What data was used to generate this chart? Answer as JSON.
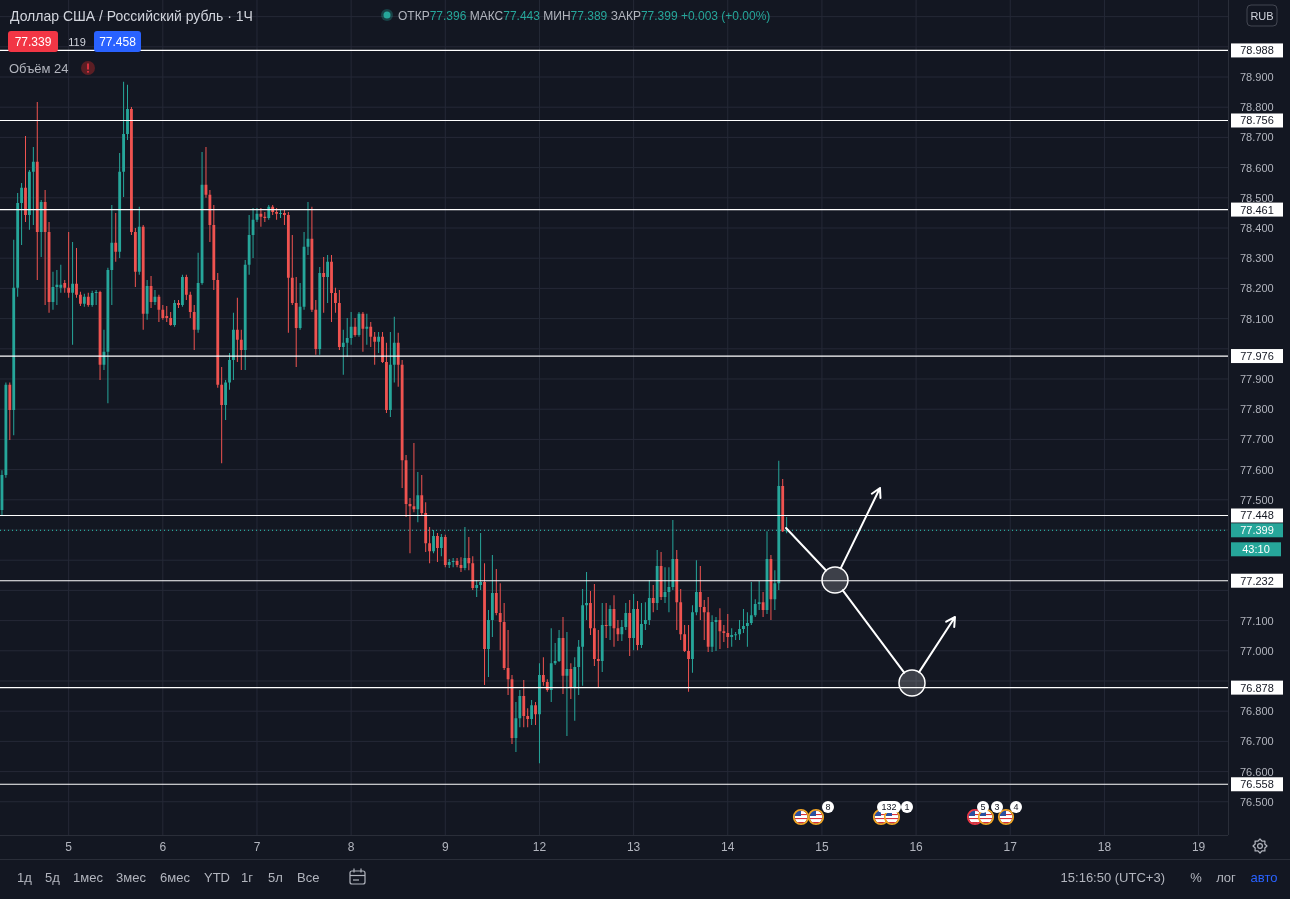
{
  "chart_data": {
    "type": "candlestick",
    "title": "Доллар США / Российский рубль · 1Ч",
    "subtitle": "ОТКР77.396 МАКС77.443 МИН77.389 ЗАКР77.399 +0.003 (+0.00%)",
    "categories": [
      null,
      null,
      null,
      null,
      null,
      null,
      null,
      null,
      null,
      null,
      null,
      null,
      null,
      null,
      null,
      null,
      null,
      "5",
      null,
      null,
      null,
      null,
      null,
      null,
      null,
      null,
      null,
      null,
      null,
      null,
      null,
      null,
      null,
      null,
      null,
      null,
      null,
      null,
      null,
      null,
      null,
      "6",
      null,
      null,
      null,
      null,
      null,
      null,
      null,
      null,
      null,
      null,
      null,
      null,
      null,
      null,
      null,
      null,
      null,
      null,
      null,
      null,
      null,
      null,
      null,
      "7",
      null,
      null,
      null,
      null,
      null,
      null,
      null,
      null,
      null,
      null,
      null,
      null,
      null,
      null,
      null,
      null,
      null,
      null,
      null,
      null,
      null,
      null,
      null,
      "8",
      null,
      null,
      null,
      null,
      null,
      null,
      null,
      null,
      null,
      null,
      null,
      null,
      null,
      null,
      null,
      null,
      null,
      null,
      null,
      null,
      null,
      null,
      null,
      "9",
      null,
      null,
      null,
      null,
      null,
      null,
      null,
      null,
      null,
      null,
      null,
      null,
      null,
      null,
      null,
      null,
      null,
      null,
      null,
      null,
      null,
      null,
      null,
      "12",
      null,
      null,
      null,
      null,
      null,
      null,
      null,
      null,
      null,
      null,
      null,
      null,
      null,
      null,
      null,
      null,
      null,
      null,
      null,
      null,
      null,
      null,
      null,
      "13",
      null,
      null,
      null,
      null,
      null,
      null,
      null,
      null,
      null,
      null,
      null,
      null,
      null,
      null,
      null,
      null,
      null,
      null,
      null,
      null,
      null,
      null,
      null,
      "14",
      null,
      null,
      null,
      null,
      null,
      null,
      null,
      null,
      null,
      null,
      null,
      null,
      null,
      null,
      null,
      null,
      null,
      null,
      null,
      null,
      null,
      null,
      null,
      "15",
      null,
      null,
      null,
      null,
      null,
      null,
      null,
      null,
      null,
      null,
      null,
      null,
      null,
      null,
      null,
      null,
      null,
      null,
      null,
      null,
      null,
      null,
      null,
      "16",
      null,
      null,
      null,
      null,
      null,
      null,
      null,
      null,
      null,
      null,
      null,
      null,
      null,
      null,
      null,
      null,
      null,
      null,
      null,
      null,
      null,
      null,
      null,
      "17",
      null,
      null,
      null,
      null,
      null,
      null,
      null,
      null,
      null,
      null,
      null,
      null,
      null,
      null,
      null,
      null,
      null,
      null,
      null,
      null,
      null,
      null,
      null,
      "18",
      null,
      null,
      null,
      null,
      null,
      null,
      null,
      null,
      null,
      null,
      null,
      null,
      null,
      null,
      null,
      null,
      null,
      null,
      null,
      null,
      null,
      null,
      null,
      "19",
      null,
      null,
      null,
      null,
      null,
      null,
      null
    ],
    "ohlc": [
      [
        77.466,
        77.598,
        77.449,
        77.582
      ],
      [
        77.582,
        77.888,
        77.573,
        77.881
      ],
      [
        77.881,
        77.888,
        77.698,
        77.797
      ],
      [
        77.797,
        78.361,
        77.714,
        78.202
      ],
      [
        78.202,
        78.516,
        78.172,
        78.483
      ],
      [
        78.483,
        78.549,
        78.344,
        78.533
      ],
      [
        78.533,
        78.705,
        78.42,
        78.443
      ],
      [
        78.443,
        78.592,
        78.394,
        78.586
      ],
      [
        78.586,
        78.668,
        78.41,
        78.619
      ],
      [
        78.619,
        78.817,
        78.228,
        78.387
      ],
      [
        78.387,
        78.493,
        78.304,
        78.486
      ],
      [
        78.486,
        78.526,
        78.145,
        78.387
      ],
      [
        78.387,
        78.42,
        78.119,
        78.155
      ],
      [
        78.155,
        78.255,
        78.129,
        78.205
      ],
      [
        78.205,
        78.261,
        78.145,
        78.212
      ],
      [
        78.202,
        78.278,
        78.186,
        78.212
      ],
      [
        78.218,
        78.228,
        78.186,
        78.202
      ],
      [
        78.202,
        78.387,
        78.169,
        78.186
      ],
      [
        78.186,
        78.354,
        78.013,
        78.215
      ],
      [
        78.215,
        78.334,
        78.169,
        78.179
      ],
      [
        78.179,
        78.189,
        78.142,
        78.149
      ],
      [
        78.149,
        78.182,
        78.139,
        78.172
      ],
      [
        78.172,
        78.186,
        78.139,
        78.145
      ],
      [
        78.145,
        78.192,
        78.139,
        78.185
      ],
      [
        78.185,
        78.195,
        78.145,
        78.188
      ],
      [
        78.188,
        78.192,
        77.897,
        77.947
      ],
      [
        77.947,
        78.063,
        77.93,
        77.99
      ],
      [
        77.99,
        78.268,
        77.82,
        78.261
      ],
      [
        78.261,
        78.476,
        78.145,
        78.351
      ],
      [
        78.351,
        78.45,
        78.288,
        78.321
      ],
      [
        78.321,
        78.648,
        78.301,
        78.586
      ],
      [
        78.586,
        78.884,
        78.503,
        78.711
      ],
      [
        78.711,
        78.874,
        78.691,
        78.794
      ],
      [
        78.794,
        78.801,
        78.377,
        78.387
      ],
      [
        78.387,
        78.4,
        78.205,
        78.255
      ],
      [
        78.255,
        78.47,
        78.245,
        78.404
      ],
      [
        78.404,
        78.41,
        78.063,
        78.116
      ],
      [
        78.116,
        78.228,
        78.096,
        78.208
      ],
      [
        78.208,
        78.241,
        78.135,
        78.155
      ],
      [
        78.155,
        78.195,
        78.145,
        78.172
      ],
      [
        78.172,
        78.179,
        78.089,
        78.129
      ],
      [
        78.129,
        78.145,
        78.096,
        78.102
      ],
      [
        78.109,
        78.142,
        78.089,
        78.102
      ],
      [
        78.102,
        78.122,
        78.076,
        78.079
      ],
      [
        78.079,
        78.162,
        78.073,
        78.152
      ],
      [
        78.152,
        78.162,
        78.135,
        78.145
      ],
      [
        78.145,
        78.245,
        78.139,
        78.238
      ],
      [
        78.238,
        78.245,
        78.162,
        78.179
      ],
      [
        78.179,
        78.189,
        78.102,
        78.122
      ],
      [
        78.122,
        78.145,
        77.996,
        78.063
      ],
      [
        78.063,
        78.318,
        78.053,
        78.218
      ],
      [
        78.218,
        78.652,
        78.212,
        78.543
      ],
      [
        78.543,
        78.668,
        78.5,
        78.51
      ],
      [
        78.51,
        78.526,
        78.354,
        78.41
      ],
      [
        78.41,
        78.476,
        78.195,
        78.228
      ],
      [
        78.228,
        78.251,
        77.871,
        77.881
      ],
      [
        77.881,
        77.94,
        77.621,
        77.814
      ],
      [
        77.814,
        77.897,
        77.764,
        77.888
      ],
      [
        77.888,
        77.986,
        77.864,
        77.963
      ],
      [
        77.963,
        78.119,
        77.897,
        78.063
      ],
      [
        78.063,
        78.169,
        77.956,
        78.03
      ],
      [
        78.03,
        78.063,
        77.93,
        77.996
      ],
      [
        77.996,
        78.294,
        77.93,
        78.278
      ],
      [
        78.278,
        78.443,
        78.245,
        78.377
      ],
      [
        78.377,
        78.466,
        78.301,
        78.427
      ],
      [
        78.427,
        78.466,
        78.42,
        78.447
      ],
      [
        78.447,
        78.466,
        78.404,
        78.437
      ],
      [
        78.437,
        78.453,
        78.42,
        78.433
      ],
      [
        78.433,
        78.476,
        78.427,
        78.47
      ],
      [
        78.47,
        78.476,
        78.443,
        78.453
      ],
      [
        78.453,
        78.466,
        78.427,
        78.447
      ],
      [
        78.447,
        78.46,
        78.433,
        78.45
      ],
      [
        78.45,
        78.46,
        78.41,
        78.443
      ],
      [
        78.443,
        78.453,
        78.053,
        78.235
      ],
      [
        78.235,
        78.377,
        78.145,
        78.152
      ],
      [
        78.152,
        78.238,
        77.94,
        78.069
      ],
      [
        78.069,
        78.218,
        78.063,
        78.139
      ],
      [
        78.139,
        78.387,
        78.129,
        78.338
      ],
      [
        78.338,
        78.486,
        78.311,
        78.364
      ],
      [
        78.364,
        78.47,
        78.122,
        78.129
      ],
      [
        78.129,
        78.162,
        77.98,
        77.999
      ],
      [
        77.999,
        78.271,
        77.98,
        78.251
      ],
      [
        78.251,
        78.304,
        78.119,
        78.238
      ],
      [
        78.238,
        78.311,
        78.152,
        78.288
      ],
      [
        78.288,
        78.311,
        78.089,
        78.185
      ],
      [
        78.185,
        78.202,
        78.119,
        78.152
      ],
      [
        78.152,
        78.195,
        77.996,
        78.006
      ],
      [
        78.006,
        78.063,
        77.914,
        78.02
      ],
      [
        78.02,
        78.102,
        77.973,
        78.036
      ],
      [
        78.036,
        78.122,
        78.013,
        78.073
      ],
      [
        78.073,
        78.102,
        78.04,
        78.046
      ],
      [
        78.046,
        78.122,
        78.04,
        78.116
      ],
      [
        78.116,
        78.122,
        77.99,
        78.066
      ],
      [
        78.066,
        78.116,
        78.013,
        78.073
      ],
      [
        78.073,
        78.089,
        78.006,
        78.04
      ],
      [
        78.04,
        78.056,
        77.947,
        78.023
      ],
      [
        78.023,
        78.056,
        77.986,
        78.04
      ],
      [
        78.04,
        78.056,
        77.953,
        77.956
      ],
      [
        77.956,
        78.02,
        77.787,
        77.797
      ],
      [
        77.797,
        78.056,
        77.774,
        77.947
      ],
      [
        77.947,
        78.106,
        77.888,
        78.02
      ],
      [
        78.02,
        78.053,
        77.874,
        77.947
      ],
      [
        77.947,
        77.963,
        77.539,
        77.631
      ],
      [
        77.631,
        77.648,
        77.443,
        77.486
      ],
      [
        77.486,
        77.506,
        77.323,
        77.479
      ],
      [
        77.479,
        77.688,
        77.459,
        77.469
      ],
      [
        77.469,
        77.592,
        77.426,
        77.515
      ],
      [
        77.515,
        77.582,
        77.449,
        77.456
      ],
      [
        77.456,
        77.492,
        77.327,
        77.356
      ],
      [
        77.356,
        77.41,
        77.29,
        77.33
      ],
      [
        77.33,
        77.4,
        77.323,
        77.38
      ],
      [
        77.38,
        77.39,
        77.294,
        77.34
      ],
      [
        77.34,
        77.387,
        77.313,
        77.377
      ],
      [
        77.377,
        77.384,
        77.277,
        77.284
      ],
      [
        77.284,
        77.304,
        77.274,
        77.294
      ],
      [
        77.294,
        77.307,
        77.277,
        77.297
      ],
      [
        77.297,
        77.307,
        77.277,
        77.284
      ],
      [
        77.284,
        77.31,
        77.261,
        77.274
      ],
      [
        77.274,
        77.41,
        77.267,
        77.307
      ],
      [
        77.307,
        77.377,
        77.267,
        77.29
      ],
      [
        77.29,
        77.313,
        77.201,
        77.208
      ],
      [
        77.208,
        77.234,
        77.178,
        77.218
      ],
      [
        77.218,
        77.39,
        77.201,
        77.228
      ],
      [
        77.228,
        77.29,
        76.887,
        77.006
      ],
      [
        77.006,
        77.135,
        76.913,
        77.102
      ],
      [
        77.102,
        77.317,
        77.046,
        77.191
      ],
      [
        77.191,
        77.271,
        77.118,
        77.125
      ],
      [
        77.125,
        77.224,
        77.002,
        77.095
      ],
      [
        77.095,
        77.158,
        76.936,
        76.943
      ],
      [
        76.943,
        77.069,
        76.854,
        76.906
      ],
      [
        76.906,
        76.92,
        76.691,
        76.711
      ],
      [
        76.711,
        76.83,
        76.665,
        76.777
      ],
      [
        76.777,
        76.87,
        76.747,
        76.85
      ],
      [
        76.85,
        76.903,
        76.747,
        76.784
      ],
      [
        76.784,
        76.81,
        76.747,
        76.774
      ],
      [
        76.774,
        76.837,
        76.754,
        76.82
      ],
      [
        76.82,
        76.83,
        76.754,
        76.79
      ],
      [
        76.79,
        76.959,
        76.628,
        76.92
      ],
      [
        76.92,
        76.979,
        76.884,
        76.897
      ],
      [
        76.897,
        76.906,
        76.864,
        76.87
      ],
      [
        76.87,
        77.075,
        76.83,
        76.959
      ],
      [
        76.959,
        77.026,
        76.953,
        76.966
      ],
      [
        76.966,
        77.069,
        76.963,
        77.042
      ],
      [
        77.042,
        77.112,
        76.857,
        76.917
      ],
      [
        76.917,
        77.062,
        76.718,
        76.94
      ],
      [
        76.94,
        76.959,
        76.84,
        76.877
      ],
      [
        76.877,
        76.979,
        76.768,
        76.946
      ],
      [
        76.946,
        77.036,
        76.854,
        77.013
      ],
      [
        77.013,
        77.205,
        76.884,
        77.151
      ],
      [
        77.151,
        77.261,
        77.102,
        77.158
      ],
      [
        77.158,
        77.198,
        77.052,
        77.075
      ],
      [
        77.075,
        77.221,
        76.95,
        76.973
      ],
      [
        76.973,
        77.069,
        76.88,
        76.966
      ],
      [
        76.966,
        77.158,
        76.93,
        77.085
      ],
      [
        77.085,
        77.158,
        77.042,
        77.082
      ],
      [
        77.082,
        77.151,
        77.036,
        77.138
      ],
      [
        77.138,
        77.184,
        77.013,
        77.075
      ],
      [
        77.075,
        77.102,
        77.032,
        77.055
      ],
      [
        77.055,
        77.102,
        77.032,
        77.079
      ],
      [
        77.079,
        77.158,
        77.069,
        77.125
      ],
      [
        77.125,
        77.168,
        76.983,
        77.042
      ],
      [
        77.042,
        77.188,
        77.002,
        77.138
      ],
      [
        77.138,
        77.165,
        77.002,
        77.019
      ],
      [
        77.019,
        77.158,
        77.009,
        77.089
      ],
      [
        77.089,
        77.161,
        77.069,
        77.102
      ],
      [
        77.102,
        77.234,
        77.085,
        77.175
      ],
      [
        77.175,
        77.218,
        77.128,
        77.158
      ],
      [
        77.158,
        77.334,
        77.135,
        77.281
      ],
      [
        77.281,
        77.327,
        77.168,
        77.178
      ],
      [
        77.178,
        77.277,
        77.158,
        77.195
      ],
      [
        77.195,
        77.277,
        77.128,
        77.211
      ],
      [
        77.211,
        77.433,
        77.201,
        77.304
      ],
      [
        77.304,
        77.334,
        77.069,
        77.161
      ],
      [
        77.161,
        77.205,
        77.036,
        77.055
      ],
      [
        77.055,
        77.085,
        76.996,
        76.999
      ],
      [
        76.999,
        77.085,
        76.864,
        76.973
      ],
      [
        76.973,
        77.151,
        76.927,
        77.128
      ],
      [
        77.128,
        77.3,
        77.118,
        77.195
      ],
      [
        77.195,
        77.281,
        77.102,
        77.145
      ],
      [
        77.145,
        77.168,
        77.036,
        77.128
      ],
      [
        77.128,
        77.178,
        76.996,
        77.013
      ],
      [
        77.013,
        77.118,
        76.996,
        77.095
      ],
      [
        77.095,
        77.112,
        76.999,
        77.102
      ],
      [
        77.102,
        77.141,
        77.006,
        77.065
      ],
      [
        77.065,
        77.085,
        77.029,
        77.059
      ],
      [
        77.059,
        77.122,
        77.009,
        77.046
      ],
      [
        77.046,
        77.075,
        77.013,
        77.052
      ],
      [
        77.052,
        77.062,
        77.036,
        77.055
      ],
      [
        77.055,
        77.102,
        77.036,
        77.072
      ],
      [
        77.072,
        77.138,
        77.059,
        77.082
      ],
      [
        77.082,
        77.128,
        77.013,
        77.092
      ],
      [
        77.092,
        77.228,
        77.085,
        77.118
      ],
      [
        77.118,
        77.171,
        77.112,
        77.155
      ],
      [
        77.155,
        77.231,
        77.135,
        77.161
      ],
      [
        77.161,
        77.195,
        77.112,
        77.135
      ],
      [
        77.135,
        77.396,
        77.122,
        77.304
      ],
      [
        77.304,
        77.317,
        77.102,
        77.171
      ],
      [
        77.171,
        77.267,
        77.135,
        77.224
      ],
      [
        77.224,
        77.629,
        77.201,
        77.546
      ],
      [
        77.546,
        77.569,
        77.393,
        77.396
      ],
      [
        77.396,
        77.443,
        77.389,
        77.399
      ],
      null,
      null,
      null,
      null,
      null,
      null,
      null,
      null,
      null,
      null,
      null,
      null,
      null,
      null,
      null,
      null,
      null,
      null,
      null,
      null,
      null,
      null,
      null,
      null,
      null,
      null,
      null,
      null,
      null,
      null,
      null,
      null,
      null,
      null,
      null,
      null,
      null,
      null,
      null,
      null,
      null,
      null,
      null,
      null,
      null,
      null,
      null,
      null,
      null,
      null,
      null,
      null,
      null,
      null,
      null,
      null,
      null,
      null,
      null,
      null,
      null,
      null,
      null,
      null,
      null,
      null,
      null,
      null,
      null,
      null,
      null,
      null,
      null,
      null,
      null,
      null,
      null,
      null,
      null,
      null,
      null,
      null,
      null,
      null,
      null,
      null,
      null,
      null,
      null,
      null,
      null,
      null,
      null,
      null,
      null,
      null,
      null,
      null,
      null,
      null,
      null,
      null,
      null,
      null,
      null,
      null,
      null,
      null,
      null,
      null,
      null,
      null
    ],
    "ylim": [
      76.39,
      79.155
    ],
    "yticks": [
      {
        "value": 76.5,
        "label": "76.500"
      },
      {
        "value": 76.6,
        "label": "76.600"
      },
      {
        "value": 76.7,
        "label": "76.700"
      },
      {
        "value": 76.8,
        "label": "76.800"
      },
      {
        "value": 76.9,
        "label": null
      },
      {
        "value": 77.0,
        "label": "77.000"
      },
      {
        "value": 77.1,
        "label": "77.100"
      },
      {
        "value": 77.2,
        "label": null
      },
      {
        "value": 77.3,
        "label": null
      },
      {
        "value": 77.4,
        "label": null
      },
      {
        "value": 77.5,
        "label": "77.500"
      },
      {
        "value": 77.6,
        "label": "77.600"
      },
      {
        "value": 77.7,
        "label": "77.700"
      },
      {
        "value": 77.8,
        "label": "77.800"
      },
      {
        "value": 77.9,
        "label": "77.900"
      },
      {
        "value": 78.0,
        "label": null
      },
      {
        "value": 78.1,
        "label": "78.100"
      },
      {
        "value": 78.2,
        "label": "78.200"
      },
      {
        "value": 78.3,
        "label": "78.300"
      },
      {
        "value": 78.4,
        "label": "78.400"
      },
      {
        "value": 78.5,
        "label": "78.500"
      },
      {
        "value": 78.6,
        "label": "78.600"
      },
      {
        "value": 78.7,
        "label": "78.700"
      },
      {
        "value": 78.8,
        "label": "78.800"
      },
      {
        "value": 78.9,
        "label": "78.900"
      },
      {
        "value": 79.0,
        "label": null
      },
      {
        "value": 79.1,
        "label": null
      }
    ],
    "grid": true,
    "ref_lines": [
      {
        "axis": "y",
        "value": 78.988,
        "label": "78.988",
        "color": "#ffffff"
      },
      {
        "axis": "y",
        "value": 78.756,
        "label": "78.756",
        "color": "#ffffff"
      },
      {
        "axis": "y",
        "value": 78.461,
        "label": "78.461",
        "color": "#ffffff"
      },
      {
        "axis": "y",
        "value": 77.976,
        "label": "77.976",
        "color": "#ffffff"
      },
      {
        "axis": "y",
        "value": 77.448,
        "label": "77.448",
        "color": "#ffffff"
      },
      {
        "axis": "y",
        "value": 77.232,
        "label": "77.232",
        "color": "#ffffff"
      },
      {
        "axis": "y",
        "value": 76.878,
        "label": "76.878",
        "color": "#ffffff"
      },
      {
        "axis": "y",
        "value": 76.558,
        "label": "76.558",
        "color": "#ffffff"
      },
      {
        "axis": "y",
        "value": 77.399,
        "label": "77.399",
        "color": "#26a69a",
        "line_style": "dotted"
      }
    ],
    "annotations": [
      "77.339",
      "119",
      "77.458",
      "Объём 24",
      "RUB",
      "43:10",
      "1д",
      "5д",
      "1мес",
      "3мес",
      "6мес",
      "YTD",
      "1г",
      "5л",
      "Все",
      "15:16:50 (UTC+3)",
      "%",
      "лог",
      "авто",
      "8",
      "132",
      "1",
      "5",
      "3",
      "4"
    ]
  }
}
